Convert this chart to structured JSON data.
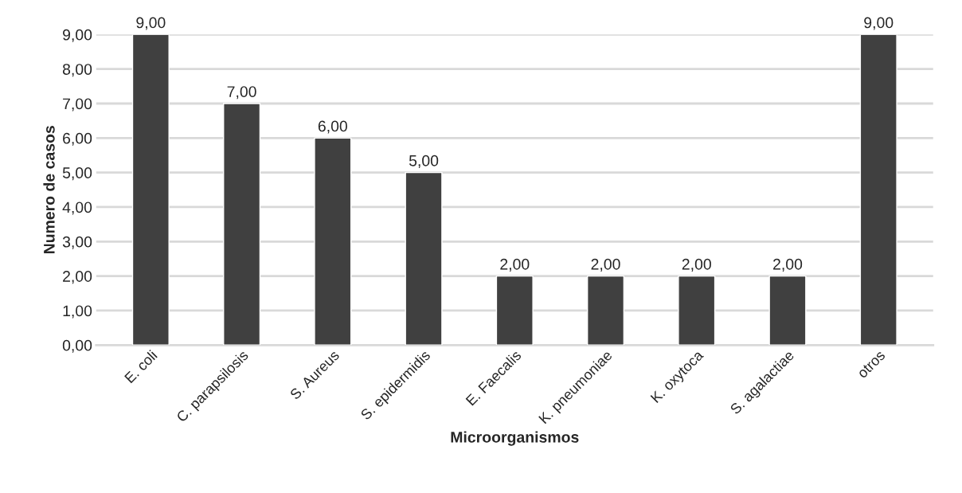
{
  "chart_data": {
    "type": "bar",
    "xlabel": "Microorganismos",
    "ylabel": "Numero de casos",
    "categories": [
      "E. coli",
      "C. parapsilosis",
      "S. Aureus",
      "S. epidermidis",
      "E. Faecalis",
      "K. pneumoniae",
      "K. oxytoca",
      "S. agalactiae",
      "otros"
    ],
    "values": [
      9,
      7,
      6,
      5,
      2,
      2,
      2,
      2,
      9
    ],
    "value_labels": [
      "9,00",
      "7,00",
      "6,00",
      "5,00",
      "2,00",
      "2,00",
      "2,00",
      "2,00",
      "9,00"
    ],
    "color": "#404040",
    "ylim": [
      0,
      9
    ],
    "yticks": [
      {
        "value": 0,
        "label": "0,00"
      },
      {
        "value": 1,
        "label": "1,00"
      },
      {
        "value": 2,
        "label": "2,00"
      },
      {
        "value": 3,
        "label": "3,00"
      },
      {
        "value": 4,
        "label": "4,00"
      },
      {
        "value": 5,
        "label": "5,00"
      },
      {
        "value": 6,
        "label": "6,00"
      },
      {
        "value": 7,
        "label": "7,00"
      },
      {
        "value": 8,
        "label": "8,00"
      },
      {
        "value": 9,
        "label": "9,00"
      }
    ],
    "grid": "y",
    "legend": false
  }
}
